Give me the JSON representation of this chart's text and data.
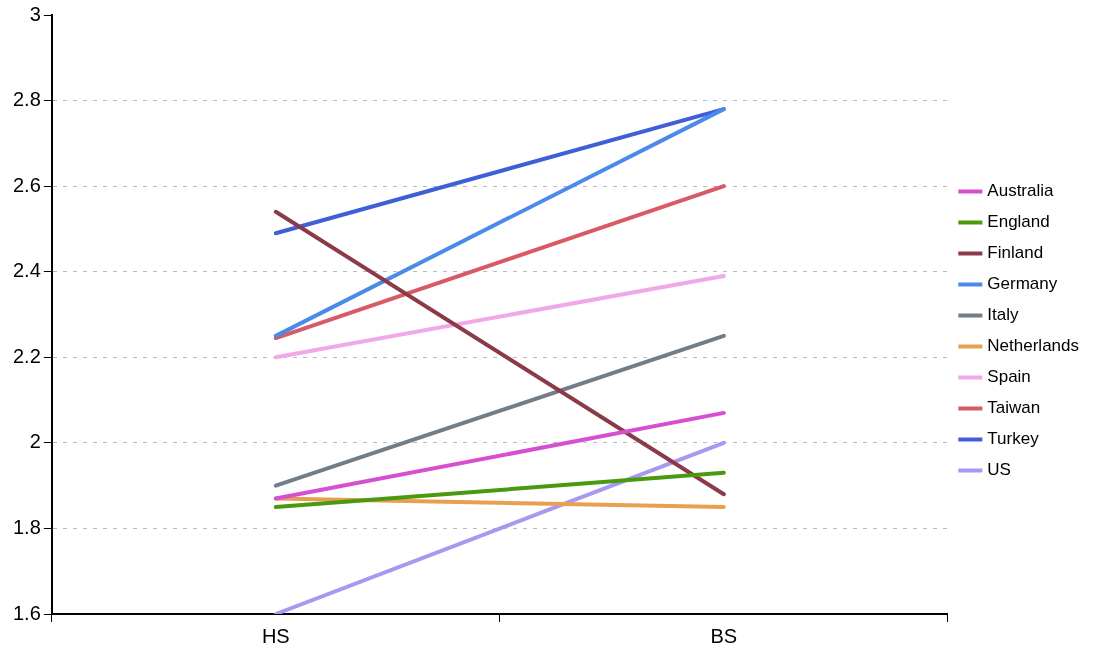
{
  "chart_data": {
    "type": "line",
    "categories": [
      "HS",
      "BS"
    ],
    "series": [
      {
        "name": "Australia",
        "color": "#d64fcf",
        "values": [
          1.87,
          2.07
        ]
      },
      {
        "name": "England",
        "color": "#4a9a10",
        "values": [
          1.85,
          1.93
        ]
      },
      {
        "name": "Finland",
        "color": "#8b3a48",
        "values": [
          2.54,
          1.88
        ]
      },
      {
        "name": "Germany",
        "color": "#4a8ae8",
        "values": [
          2.25,
          2.78
        ]
      },
      {
        "name": "Italy",
        "color": "#737d8a",
        "values": [
          1.9,
          2.25
        ]
      },
      {
        "name": "Netherlands",
        "color": "#e8a050",
        "values": [
          1.87,
          1.85
        ]
      },
      {
        "name": "Spain",
        "color": "#f0a8e8",
        "values": [
          2.2,
          2.39
        ]
      },
      {
        "name": "Taiwan",
        "color": "#d85a66",
        "values": [
          2.245,
          2.6
        ]
      },
      {
        "name": "Turkey",
        "color": "#3f5fd8",
        "values": [
          2.49,
          2.78
        ]
      },
      {
        "name": "US",
        "color": "#a898f0",
        "values": [
          1.6,
          2.0
        ]
      }
    ],
    "ylim": [
      1.6,
      3
    ],
    "yticks": [
      1.6,
      1.8,
      2,
      2.2,
      2.4,
      2.6,
      2.8,
      3
    ],
    "grid": "y",
    "legend": "right",
    "marker": "none",
    "line_style": "solid"
  }
}
